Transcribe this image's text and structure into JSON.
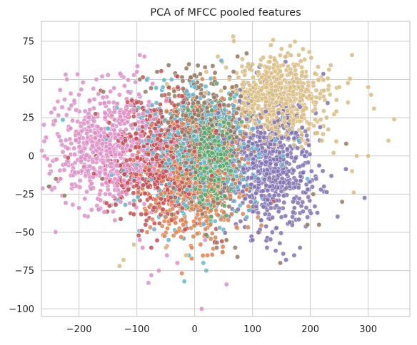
{
  "chart_data": {
    "type": "scatter",
    "title": "PCA of MFCC pooled features",
    "xlabel": "",
    "ylabel": "",
    "xlim": [
      -265,
      372
    ],
    "ylim": [
      -105,
      88
    ],
    "xticks": [
      -200,
      -100,
      0,
      100,
      200,
      300
    ],
    "yticks": [
      -100,
      -75,
      -50,
      -25,
      0,
      25,
      50,
      75
    ],
    "grid": true,
    "legend": "none",
    "point_style": {
      "edge_color": "#ffffff",
      "opacity": 0.85
    },
    "series": [
      {
        "color": "#dd8fc8",
        "center": [
          -150,
          5
        ],
        "spread": [
          45,
          18
        ],
        "points": [
          [
            -250,
            -20
          ],
          [
            -247,
            -22
          ],
          [
            -229,
            -26
          ],
          [
            -232,
            -15
          ],
          [
            -220,
            5
          ],
          [
            -215,
            18
          ],
          [
            -205,
            30
          ],
          [
            -200,
            40
          ],
          [
            -170,
            50
          ],
          [
            -160,
            52
          ],
          [
            -150,
            53
          ],
          [
            -130,
            40
          ],
          [
            -115,
            42
          ],
          [
            -100,
            55
          ],
          [
            -95,
            66
          ],
          [
            -87,
            65
          ],
          [
            -118,
            -25
          ],
          [
            -128,
            -30
          ],
          [
            -138,
            -15
          ],
          [
            -95,
            -55
          ],
          [
            -90,
            -60
          ],
          [
            -62,
            -75
          ],
          [
            -80,
            -83
          ],
          [
            -75,
            -78
          ],
          [
            -48,
            -65
          ],
          [
            -30,
            -70
          ],
          [
            12,
            -100
          ],
          [
            55,
            -84
          ],
          [
            18,
            -55
          ],
          [
            -200,
            -34
          ],
          [
            -190,
            -28
          ],
          [
            -185,
            22
          ],
          [
            -172,
            15
          ],
          [
            -160,
            8
          ],
          [
            -145,
            -5
          ],
          [
            -135,
            -10
          ],
          [
            -125,
            5
          ],
          [
            -110,
            20
          ],
          [
            -105,
            30
          ],
          [
            -140,
            35
          ],
          [
            -155,
            28
          ],
          [
            -165,
            10
          ],
          [
            -175,
            -8
          ],
          [
            -178,
            -18
          ],
          [
            -150,
            -22
          ],
          [
            -142,
            20
          ],
          [
            -122,
            28
          ]
        ]
      },
      {
        "color": "#c44e52",
        "center": [
          -60,
          -2
        ],
        "spread": [
          45,
          20
        ],
        "points": [
          [
            -115,
            -22
          ],
          [
            -97,
            -52
          ],
          [
            -75,
            -60
          ],
          [
            -85,
            -45
          ],
          [
            -45,
            45
          ],
          [
            -30,
            52
          ],
          [
            -70,
            30
          ],
          [
            -100,
            35
          ],
          [
            -55,
            -35
          ],
          [
            -40,
            -42
          ],
          [
            -65,
            5
          ],
          [
            -80,
            12
          ],
          [
            -35,
            18
          ],
          [
            -50,
            -10
          ],
          [
            -90,
            -15
          ],
          [
            -20,
            35
          ],
          [
            -10,
            -25
          ],
          [
            -120,
            10
          ]
        ]
      },
      {
        "color": "#937860",
        "center": [
          20,
          10
        ],
        "spread": [
          35,
          20
        ],
        "points": [
          [
            65,
            45
          ],
          [
            62,
            40
          ],
          [
            -10,
            60
          ],
          [
            18,
            58
          ],
          [
            55,
            -55
          ],
          [
            70,
            -60
          ],
          [
            74,
            -66
          ],
          [
            38,
            -60
          ],
          [
            -95,
            50
          ],
          [
            -65,
            55
          ],
          [
            -85,
            42
          ],
          [
            148,
            -70
          ],
          [
            195,
            -45
          ],
          [
            215,
            -45
          ],
          [
            255,
            -30
          ],
          [
            262,
            8
          ],
          [
            205,
            -25
          ],
          [
            -252,
            -20
          ],
          [
            -240,
            -15
          ],
          [
            -225,
            -26
          ],
          [
            -160,
            -15
          ],
          [
            -158,
            42
          ],
          [
            -20,
            44
          ],
          [
            5,
            30
          ],
          [
            30,
            20
          ]
        ]
      },
      {
        "color": "#dd8452",
        "center": [
          0,
          -15
        ],
        "spread": [
          40,
          20
        ],
        "points": [
          [
            -98,
            -24
          ],
          [
            -50,
            -40
          ],
          [
            -32,
            -50
          ],
          [
            -5,
            -60
          ],
          [
            22,
            -65
          ],
          [
            58,
            -42
          ],
          [
            85,
            12
          ],
          [
            90,
            -22
          ],
          [
            115,
            25
          ],
          [
            -75,
            20
          ],
          [
            -40,
            5
          ],
          [
            -20,
            -15
          ],
          [
            10,
            -20
          ],
          [
            40,
            -10
          ],
          [
            62,
            0
          ]
        ]
      },
      {
        "color": "#64b5cd",
        "center": [
          0,
          2
        ],
        "spread": [
          55,
          20
        ],
        "points": [
          [
            -150,
            18
          ],
          [
            -120,
            -32
          ],
          [
            -98,
            -27
          ],
          [
            -70,
            -48
          ],
          [
            -45,
            -55
          ],
          [
            -10,
            -65
          ],
          [
            20,
            -75
          ],
          [
            -18,
            -82
          ],
          [
            15,
            -70
          ],
          [
            90,
            -40
          ],
          [
            105,
            -30
          ],
          [
            153,
            0
          ],
          [
            180,
            10
          ],
          [
            195,
            -15
          ],
          [
            -55,
            45
          ],
          [
            -40,
            50
          ],
          [
            0,
            45
          ],
          [
            30,
            35
          ],
          [
            60,
            25
          ],
          [
            -80,
            10
          ],
          [
            -50,
            -5
          ],
          [
            -20,
            8
          ],
          [
            10,
            -5
          ],
          [
            40,
            12
          ],
          [
            70,
            -10
          ],
          [
            -30,
            -30
          ]
        ]
      },
      {
        "color": "#55a868",
        "center": [
          25,
          0
        ],
        "spread": [
          20,
          15
        ],
        "points": [
          [
            30,
            2
          ],
          [
            45,
            1
          ],
          [
            20,
            -8
          ],
          [
            55,
            -5
          ],
          [
            60,
            12
          ],
          [
            35,
            10
          ],
          [
            10,
            5
          ],
          [
            15,
            -15
          ],
          [
            40,
            -20
          ],
          [
            25,
            18
          ],
          [
            65,
            0
          ],
          [
            50,
            5
          ]
        ]
      },
      {
        "color": "#8172b3",
        "center": [
          130,
          -5
        ],
        "spread": [
          40,
          22
        ],
        "points": [
          [
            97,
            -30
          ],
          [
            110,
            -50
          ],
          [
            125,
            -60
          ],
          [
            140,
            -62
          ],
          [
            158,
            -68
          ],
          [
            172,
            -65
          ],
          [
            182,
            -60
          ],
          [
            195,
            -40
          ],
          [
            202,
            -10
          ],
          [
            210,
            -15
          ],
          [
            218,
            -22
          ],
          [
            182,
            32
          ],
          [
            160,
            25
          ],
          [
            145,
            28
          ],
          [
            138,
            22
          ],
          [
            120,
            12
          ],
          [
            100,
            8
          ],
          [
            170,
            -30
          ],
          [
            150,
            -40
          ],
          [
            130,
            -20
          ],
          [
            110,
            -10
          ],
          [
            90,
            0
          ],
          [
            85,
            -20
          ],
          [
            75,
            -35
          ],
          [
            100,
            -55
          ],
          [
            115,
            -42
          ],
          [
            190,
            0
          ],
          [
            175,
            15
          ]
        ]
      },
      {
        "color": "#d8bc82",
        "center": [
          145,
          35
        ],
        "spread": [
          40,
          14
        ],
        "points": [
          [
            150,
            70
          ],
          [
            165,
            72
          ],
          [
            180,
            66
          ],
          [
            190,
            63
          ],
          [
            198,
            68
          ],
          [
            100,
            60
          ],
          [
            110,
            55
          ],
          [
            125,
            58
          ],
          [
            88,
            42
          ],
          [
            250,
            45
          ],
          [
            265,
            35
          ],
          [
            272,
            66
          ],
          [
            300,
            45
          ],
          [
            305,
            40
          ],
          [
            310,
            31
          ],
          [
            345,
            24
          ],
          [
            335,
            10
          ],
          [
            300,
            0
          ],
          [
            280,
            0
          ],
          [
            272,
            -10
          ],
          [
            275,
            -24
          ],
          [
            240,
            2
          ],
          [
            220,
            10
          ],
          [
            228,
            25
          ],
          [
            210,
            35
          ],
          [
            205,
            48
          ],
          [
            -130,
            -72
          ],
          [
            -123,
            -68
          ],
          [
            -50,
            -60
          ],
          [
            -15,
            -65
          ],
          [
            -105,
            -58
          ],
          [
            -48,
            47
          ],
          [
            20,
            55
          ],
          [
            40,
            65
          ],
          [
            60,
            50
          ],
          [
            135,
            40
          ],
          [
            155,
            25
          ],
          [
            170,
            42
          ],
          [
            188,
            30
          ]
        ]
      }
    ]
  }
}
